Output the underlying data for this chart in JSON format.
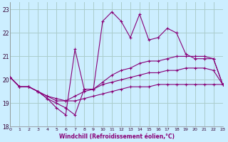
{
  "xlabel": "Windchill (Refroidissement éolien,°C)",
  "background_color": "#cceeff",
  "grid_color": "#aacccc",
  "line_color": "#880077",
  "xlim": [
    0,
    23
  ],
  "ylim": [
    18,
    23.3
  ],
  "yticks": [
    18,
    19,
    20,
    21,
    22,
    23
  ],
  "xticks": [
    0,
    1,
    2,
    3,
    4,
    5,
    6,
    7,
    8,
    9,
    10,
    11,
    12,
    13,
    14,
    15,
    16,
    17,
    18,
    19,
    20,
    21,
    22,
    23
  ],
  "hours": [
    0,
    1,
    2,
    3,
    4,
    5,
    6,
    7,
    8,
    9,
    10,
    11,
    12,
    13,
    14,
    15,
    16,
    17,
    18,
    19,
    20,
    21,
    22,
    23
  ],
  "main_line": [
    20.1,
    19.7,
    19.7,
    19.5,
    19.2,
    18.8,
    18.5,
    21.3,
    19.6,
    19.6,
    22.5,
    22.9,
    22.5,
    21.8,
    22.8,
    21.7,
    21.8,
    22.2,
    22.0,
    21.1,
    20.9,
    20.9,
    20.9,
    19.8
  ],
  "line2": [
    20.1,
    19.7,
    19.7,
    19.5,
    19.2,
    19.0,
    18.8,
    18.5,
    19.6,
    19.6,
    19.9,
    20.2,
    20.4,
    20.5,
    20.7,
    20.8,
    20.8,
    20.9,
    21.0,
    21.0,
    21.0,
    21.0,
    20.9,
    19.8
  ],
  "line3": [
    20.1,
    19.7,
    19.7,
    19.5,
    19.3,
    19.1,
    19.1,
    19.3,
    19.5,
    19.6,
    19.8,
    19.9,
    20.0,
    20.1,
    20.2,
    20.3,
    20.3,
    20.4,
    20.4,
    20.5,
    20.5,
    20.5,
    20.4,
    19.8
  ],
  "line4": [
    20.1,
    19.7,
    19.7,
    19.5,
    19.3,
    19.2,
    19.1,
    19.1,
    19.2,
    19.3,
    19.4,
    19.5,
    19.6,
    19.7,
    19.7,
    19.7,
    19.8,
    19.8,
    19.8,
    19.8,
    19.8,
    19.8,
    19.8,
    19.8
  ]
}
